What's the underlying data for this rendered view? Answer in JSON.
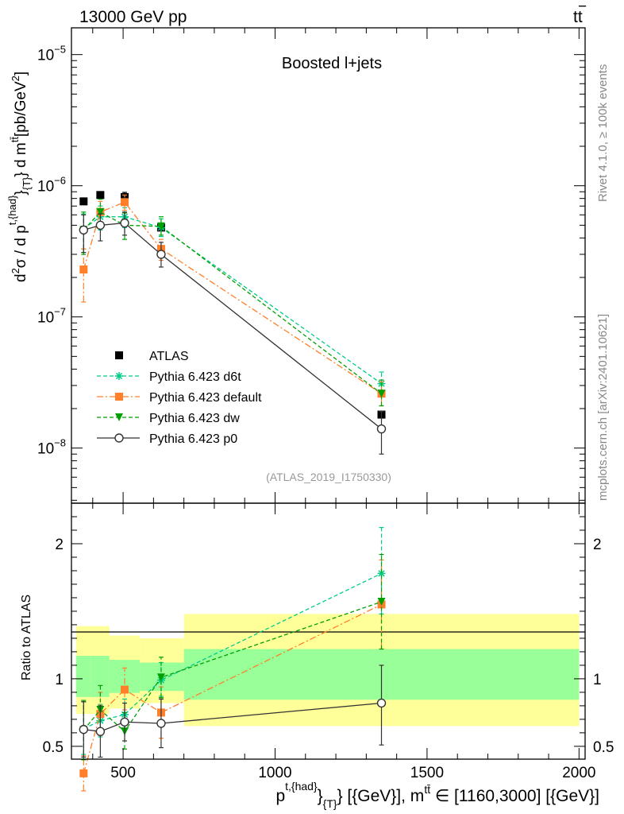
{
  "header": {
    "left": "13000 GeV pp",
    "right_main": "tt",
    "right_bar": "−"
  },
  "side": {
    "rivet": "Rivet 4.1.0, ≥ 100k events",
    "mcplots": "mcplots.cern.ch [arXiv:2401.10621]"
  },
  "chart_data": [
    {
      "type": "line",
      "scale": "log",
      "title": "Boosted l+jets",
      "analysis_tag": "(ATLAS_2019_I1750330)",
      "ylabel": "d²σ / d p^{t,{had}}_{T} d m^{tt̄} [pb/GeV²]",
      "ylabel_parts": {
        "a": "d",
        "a_sup": "2",
        "b": "σ /  d p",
        "b_sup": "t,{had}",
        "c": "}",
        "c_sub": "{T}",
        "d": "} d m",
        "d_sup": "tt̄",
        "e": "[pb/GeV",
        "e_sup": "2",
        "f": "]"
      },
      "xlim": [
        330,
        2020
      ],
      "ylim": [
        3.8e-09,
        1.6e-05
      ],
      "y_ticks": [
        {
          "value": 1e-05,
          "base": "10",
          "exp": "−5"
        },
        {
          "value": 1e-06,
          "base": "10",
          "exp": "−6"
        },
        {
          "value": 1e-07,
          "base": "10",
          "exp": "−7"
        },
        {
          "value": 1e-08,
          "base": "10",
          "exp": "−8"
        }
      ],
      "series": [
        {
          "name": "ATLAS",
          "color": "#000000",
          "style": "data",
          "marker": "square",
          "x": [
            370,
            425,
            505,
            625,
            1350
          ],
          "y": [
            7.6e-07,
            8.5e-07,
            8.2e-07,
            4.8e-07,
            1.8e-08
          ],
          "err_low": [
            7.6e-07,
            8.5e-07,
            7.4e-07,
            4.6e-07,
            1.7e-08
          ],
          "err_high": [
            7.6e-07,
            8.5e-07,
            8.9e-07,
            5e-07,
            1.9e-08
          ]
        },
        {
          "name": "Pythia 6.423 d6t",
          "color": "#00cc88",
          "style": "dashed",
          "marker": "star",
          "x": [
            370,
            425,
            505,
            625,
            1350
          ],
          "y": [
            4.7e-07,
            5.8e-07,
            5.8e-07,
            4.8e-07,
            3.1e-08
          ],
          "err_low": [
            3.3e-07,
            4.6e-07,
            4.8e-07,
            4.1e-07,
            2.5e-08
          ],
          "err_high": [
            6.1e-07,
            7e-07,
            6.8e-07,
            5.6e-07,
            3.8e-08
          ]
        },
        {
          "name": "Pythia 6.423 default",
          "color": "#ff7f2a",
          "style": "dashdot",
          "marker": "square",
          "x": [
            370,
            425,
            505,
            625,
            1350
          ],
          "y": [
            2.3e-07,
            6.3e-07,
            7.5e-07,
            3.3e-07,
            2.6e-08
          ],
          "err_low": [
            1.3e-07,
            5e-07,
            6.5e-07,
            2.7e-07,
            2.1e-08
          ],
          "err_high": [
            3.3e-07,
            7.6e-07,
            8.5e-07,
            3.9e-07,
            3.2e-08
          ]
        },
        {
          "name": "Pythia 6.423 dw",
          "color": "#00a000",
          "style": "dashed",
          "marker": "triangle-down",
          "x": [
            370,
            425,
            505,
            625,
            1350
          ],
          "y": [
            4.6e-07,
            6.3e-07,
            5e-07,
            4.9e-07,
            2.6e-08
          ],
          "err_low": [
            3e-07,
            5e-07,
            3.9e-07,
            4.2e-07,
            2.1e-08
          ],
          "err_high": [
            6.3e-07,
            7.9e-07,
            6.2e-07,
            5.8e-07,
            3.3e-08
          ]
        },
        {
          "name": "Pythia 6.423 p0",
          "color": "#333333",
          "style": "solid",
          "marker": "circle-open",
          "x": [
            370,
            425,
            505,
            625,
            1350
          ],
          "y": [
            4.6e-07,
            5e-07,
            5.2e-07,
            3e-07,
            1.4e-08
          ],
          "err_low": [
            3.1e-07,
            3.8e-07,
            4.2e-07,
            2.4e-07,
            9e-09
          ],
          "err_high": [
            6e-07,
            6.1e-07,
            6.3e-07,
            3.7e-07,
            1.9e-08
          ]
        }
      ]
    },
    {
      "type": "line",
      "title": "",
      "ylabel": "Ratio to ATLAS",
      "xlabel": "p^{t,{had}}_{T} [{GeV}], m^{tt̄} ∈ [1160,3000] [{GeV}]",
      "xlabel_parts": {
        "a": "p",
        "a_sup": "t,{had}",
        "b": "}",
        "b_sub": "{T}",
        "c": "} [{GeV}], m",
        "c_sup": "tt̄",
        "d": " ∈ [1160,3000] [{GeV}]"
      },
      "xlim": [
        330,
        2020
      ],
      "ylim": [
        0.405,
        2.3
      ],
      "y_ticks": [
        {
          "value": 0.5,
          "label": "0.5"
        },
        {
          "value": 1,
          "label": "1"
        },
        {
          "value": 2,
          "label": "2"
        }
      ],
      "x_ticks": [
        {
          "value": 500,
          "label": "500"
        },
        {
          "value": 1000,
          "label": "1000"
        },
        {
          "value": 1500,
          "label": "1500"
        },
        {
          "value": 2000,
          "label": "2000"
        }
      ],
      "bands": [
        {
          "x0": 345,
          "x1": 395,
          "y_lo": 0.74,
          "y_hi": 1.39,
          "s_lo": 0.865,
          "s_hi": 1.17
        },
        {
          "x0": 395,
          "x1": 455,
          "y_lo": 0.74,
          "y_hi": 1.39,
          "s_lo": 0.865,
          "s_hi": 1.17
        },
        {
          "x0": 455,
          "x1": 555,
          "y_lo": 0.78,
          "y_hi": 1.32,
          "s_lo": 0.895,
          "s_hi": 1.14
        },
        {
          "x0": 555,
          "x1": 700,
          "y_lo": 0.82,
          "y_hi": 1.3,
          "s_lo": 0.91,
          "s_hi": 1.12
        },
        {
          "x0": 700,
          "x1": 2000,
          "y_lo": 0.65,
          "y_hi": 1.48,
          "s_lo": 0.845,
          "s_hi": 1.22
        }
      ],
      "series": [
        {
          "name": "Pythia 6.423 d6t",
          "color": "#00cc88",
          "style": "dashed",
          "marker": "star",
          "x": [
            370,
            425,
            505,
            625,
            1350
          ],
          "y": [
            0.63,
            0.69,
            0.735,
            0.99,
            1.78
          ],
          "err_low": [
            0.44,
            0.57,
            0.62,
            0.87,
            1.48
          ],
          "err_high": [
            0.83,
            0.81,
            0.85,
            1.12,
            2.12
          ]
        },
        {
          "name": "Pythia 6.423 default",
          "color": "#ff7f2a",
          "style": "dashdot",
          "marker": "square",
          "x": [
            370,
            425,
            505,
            625,
            1350
          ],
          "y": [
            0.3,
            0.74,
            0.92,
            0.75,
            1.55
          ],
          "err_low": [
            0.17,
            0.58,
            0.77,
            0.56,
            1.22
          ],
          "err_high": [
            0.43,
            0.9,
            1.08,
            0.94,
            1.88
          ]
        },
        {
          "name": "Pythia 6.423 dw",
          "color": "#00a000",
          "style": "dashed",
          "marker": "triangle-down",
          "x": [
            370,
            425,
            505,
            625,
            1350
          ],
          "y": [
            0.62,
            0.77,
            0.61,
            1.01,
            1.57
          ],
          "err_low": [
            0.4,
            0.59,
            0.48,
            0.86,
            1.22
          ],
          "err_high": [
            0.84,
            0.95,
            0.75,
            1.16,
            1.92
          ]
        },
        {
          "name": "Pythia 6.423 p0",
          "color": "#333333",
          "style": "solid",
          "marker": "circle-open",
          "x": [
            370,
            425,
            505,
            625,
            1350
          ],
          "y": [
            0.625,
            0.61,
            0.68,
            0.67,
            0.82
          ],
          "err_low": [
            0.42,
            0.42,
            0.54,
            0.49,
            0.51
          ],
          "err_high": [
            0.83,
            0.8,
            0.82,
            0.85,
            1.1
          ]
        }
      ]
    }
  ]
}
